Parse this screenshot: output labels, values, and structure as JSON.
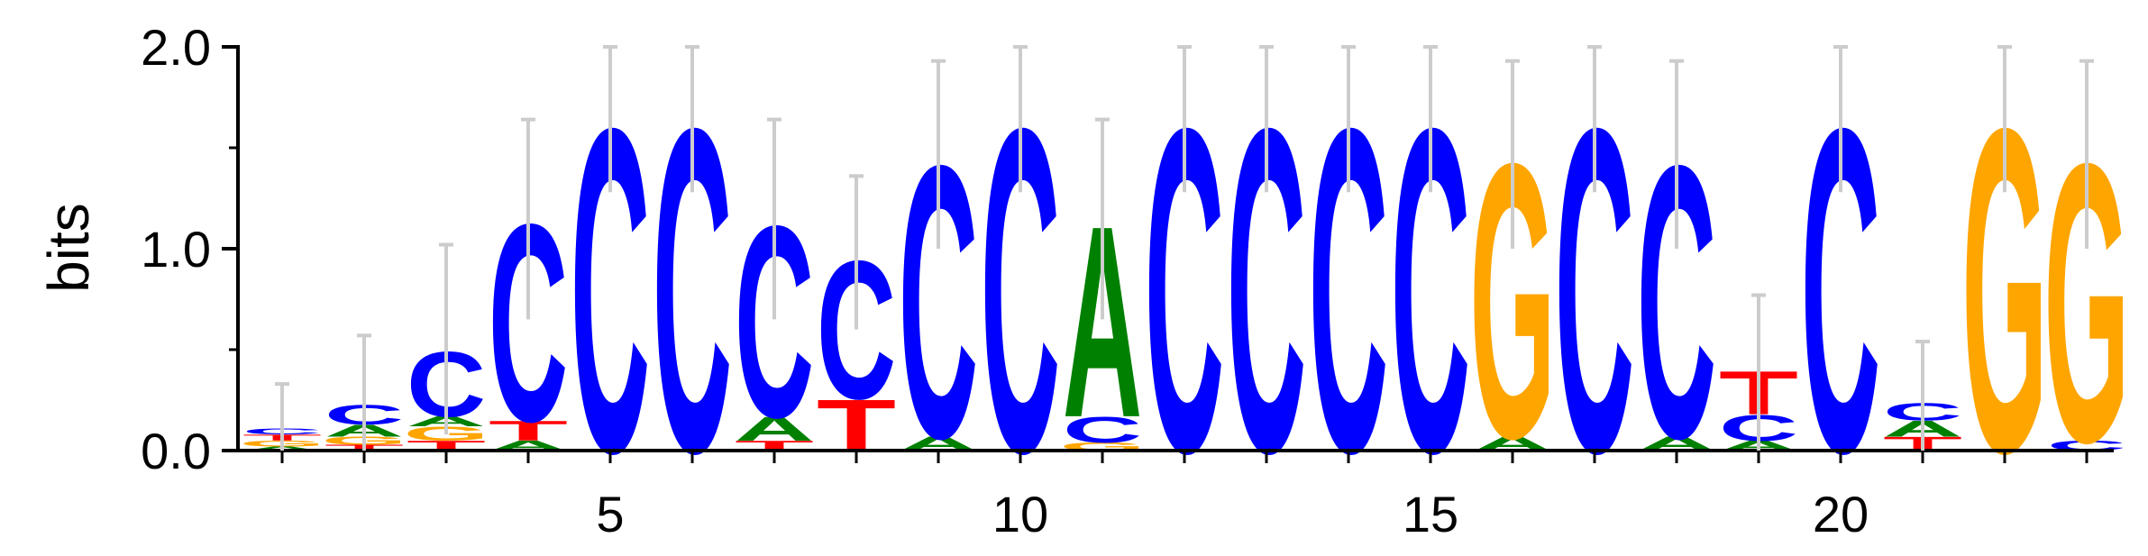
{
  "chart_data": {
    "type": "sequence-logo",
    "ylabel": "bits",
    "ylim": [
      0,
      2
    ],
    "y_ticks": [
      "0.0",
      "1.0",
      "2.0"
    ],
    "x_ticks": [
      5,
      10,
      15,
      20
    ],
    "x_range": [
      1,
      23
    ],
    "colors": {
      "A": "#008000",
      "C": "#0000ff",
      "G": "#ffa500",
      "T": "#ff0000",
      "errorbar": "#cccccc"
    },
    "positions": [
      {
        "pos": 1,
        "letters": [
          [
            "A",
            0.02
          ],
          [
            "G",
            0.03
          ],
          [
            "T",
            0.03
          ],
          [
            "C",
            0.03
          ]
        ],
        "error": [
          0.0,
          0.33
        ]
      },
      {
        "pos": 2,
        "letters": [
          [
            "T",
            0.03
          ],
          [
            "G",
            0.04
          ],
          [
            "A",
            0.06
          ],
          [
            "C",
            0.1
          ]
        ],
        "error": [
          0.0,
          0.57
        ]
      },
      {
        "pos": 3,
        "letters": [
          [
            "T",
            0.05
          ],
          [
            "G",
            0.07
          ],
          [
            "A",
            0.05
          ],
          [
            "C",
            0.33
          ]
        ],
        "error": [
          0.08,
          1.02
        ]
      },
      {
        "pos": 4,
        "letters": [
          [
            "A",
            0.05
          ],
          [
            "T",
            0.1
          ],
          [
            "C",
            1.0
          ]
        ],
        "error": [
          0.65,
          1.64
        ]
      },
      {
        "pos": 5,
        "letters": [
          [
            "C",
            1.64
          ]
        ],
        "error": [
          1.28,
          2.0
        ]
      },
      {
        "pos": 6,
        "letters": [
          [
            "C",
            1.64
          ]
        ],
        "error": [
          1.28,
          2.0
        ]
      },
      {
        "pos": 7,
        "letters": [
          [
            "T",
            0.05
          ],
          [
            "A",
            0.12
          ],
          [
            "C",
            0.97
          ]
        ],
        "error": [
          0.65,
          1.64
        ]
      },
      {
        "pos": 8,
        "letters": [
          [
            "T",
            0.26
          ],
          [
            "C",
            0.7
          ]
        ],
        "error": [
          0.6,
          1.36
        ]
      },
      {
        "pos": 9,
        "letters": [
          [
            "A",
            0.07
          ],
          [
            "C",
            1.38
          ]
        ],
        "error": [
          1.0,
          1.93
        ]
      },
      {
        "pos": 10,
        "letters": [
          [
            "C",
            1.64
          ]
        ],
        "error": [
          1.28,
          2.0
        ]
      },
      {
        "pos": 11,
        "letters": [
          [
            "G",
            0.04
          ],
          [
            "C",
            0.13
          ],
          [
            "A",
            0.97
          ]
        ],
        "error": [
          0.65,
          1.64
        ]
      },
      {
        "pos": 12,
        "letters": [
          [
            "C",
            1.64
          ]
        ],
        "error": [
          1.28,
          2.0
        ]
      },
      {
        "pos": 13,
        "letters": [
          [
            "C",
            1.64
          ]
        ],
        "error": [
          1.28,
          2.0
        ]
      },
      {
        "pos": 14,
        "letters": [
          [
            "C",
            1.64
          ]
        ],
        "error": [
          1.28,
          2.0
        ]
      },
      {
        "pos": 15,
        "letters": [
          [
            "C",
            1.64
          ]
        ],
        "error": [
          1.28,
          2.0
        ]
      },
      {
        "pos": 16,
        "letters": [
          [
            "A",
            0.07
          ],
          [
            "G",
            1.39
          ]
        ],
        "error": [
          1.0,
          1.93
        ]
      },
      {
        "pos": 17,
        "letters": [
          [
            "C",
            1.64
          ]
        ],
        "error": [
          1.28,
          2.0
        ]
      },
      {
        "pos": 18,
        "letters": [
          [
            "A",
            0.07
          ],
          [
            "C",
            1.38
          ]
        ],
        "error": [
          1.0,
          1.93
        ]
      },
      {
        "pos": 19,
        "letters": [
          [
            "A",
            0.05
          ],
          [
            "C",
            0.13
          ],
          [
            "T",
            0.22
          ]
        ],
        "error": [
          0.0,
          0.77
        ]
      },
      {
        "pos": 20,
        "letters": [
          [
            "C",
            1.64
          ]
        ],
        "error": [
          1.28,
          2.0
        ]
      },
      {
        "pos": 21,
        "letters": [
          [
            "T",
            0.07
          ],
          [
            "A",
            0.08
          ],
          [
            "C",
            0.09
          ]
        ],
        "error": [
          0.0,
          0.54
        ]
      },
      {
        "pos": 22,
        "letters": [
          [
            "G",
            1.64
          ]
        ],
        "error": [
          1.28,
          2.0
        ]
      },
      {
        "pos": 23,
        "letters": [
          [
            "C",
            0.05
          ],
          [
            "G",
            1.41
          ]
        ],
        "error": [
          1.0,
          1.93
        ]
      }
    ]
  }
}
